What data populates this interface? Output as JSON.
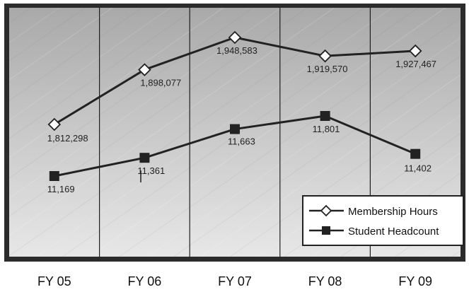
{
  "chart_data": {
    "type": "line",
    "categories": [
      "FY 05",
      "FY 06",
      "FY 07",
      "FY 08",
      "FY 09"
    ],
    "series": [
      {
        "name": "Membership Hours",
        "marker": "diamond",
        "color": "#222222",
        "values": [
          1812298,
          1898077,
          1948583,
          1919570,
          1927467
        ],
        "labels": [
          "1,812,298",
          "1,898,077",
          "1,948,583",
          "1,919,570",
          "1,927,467"
        ]
      },
      {
        "name": "Student Headcount",
        "marker": "square",
        "color": "#222222",
        "values": [
          11169,
          11361,
          11663,
          11801,
          11402
        ],
        "labels": [
          "11,169",
          "11,361",
          "11,663",
          "11,801",
          "11,402"
        ]
      }
    ],
    "grid": "vertical",
    "legend": "bottom-right",
    "background": "brushed-metal-gray",
    "frame_color": "#2b2b2b"
  }
}
